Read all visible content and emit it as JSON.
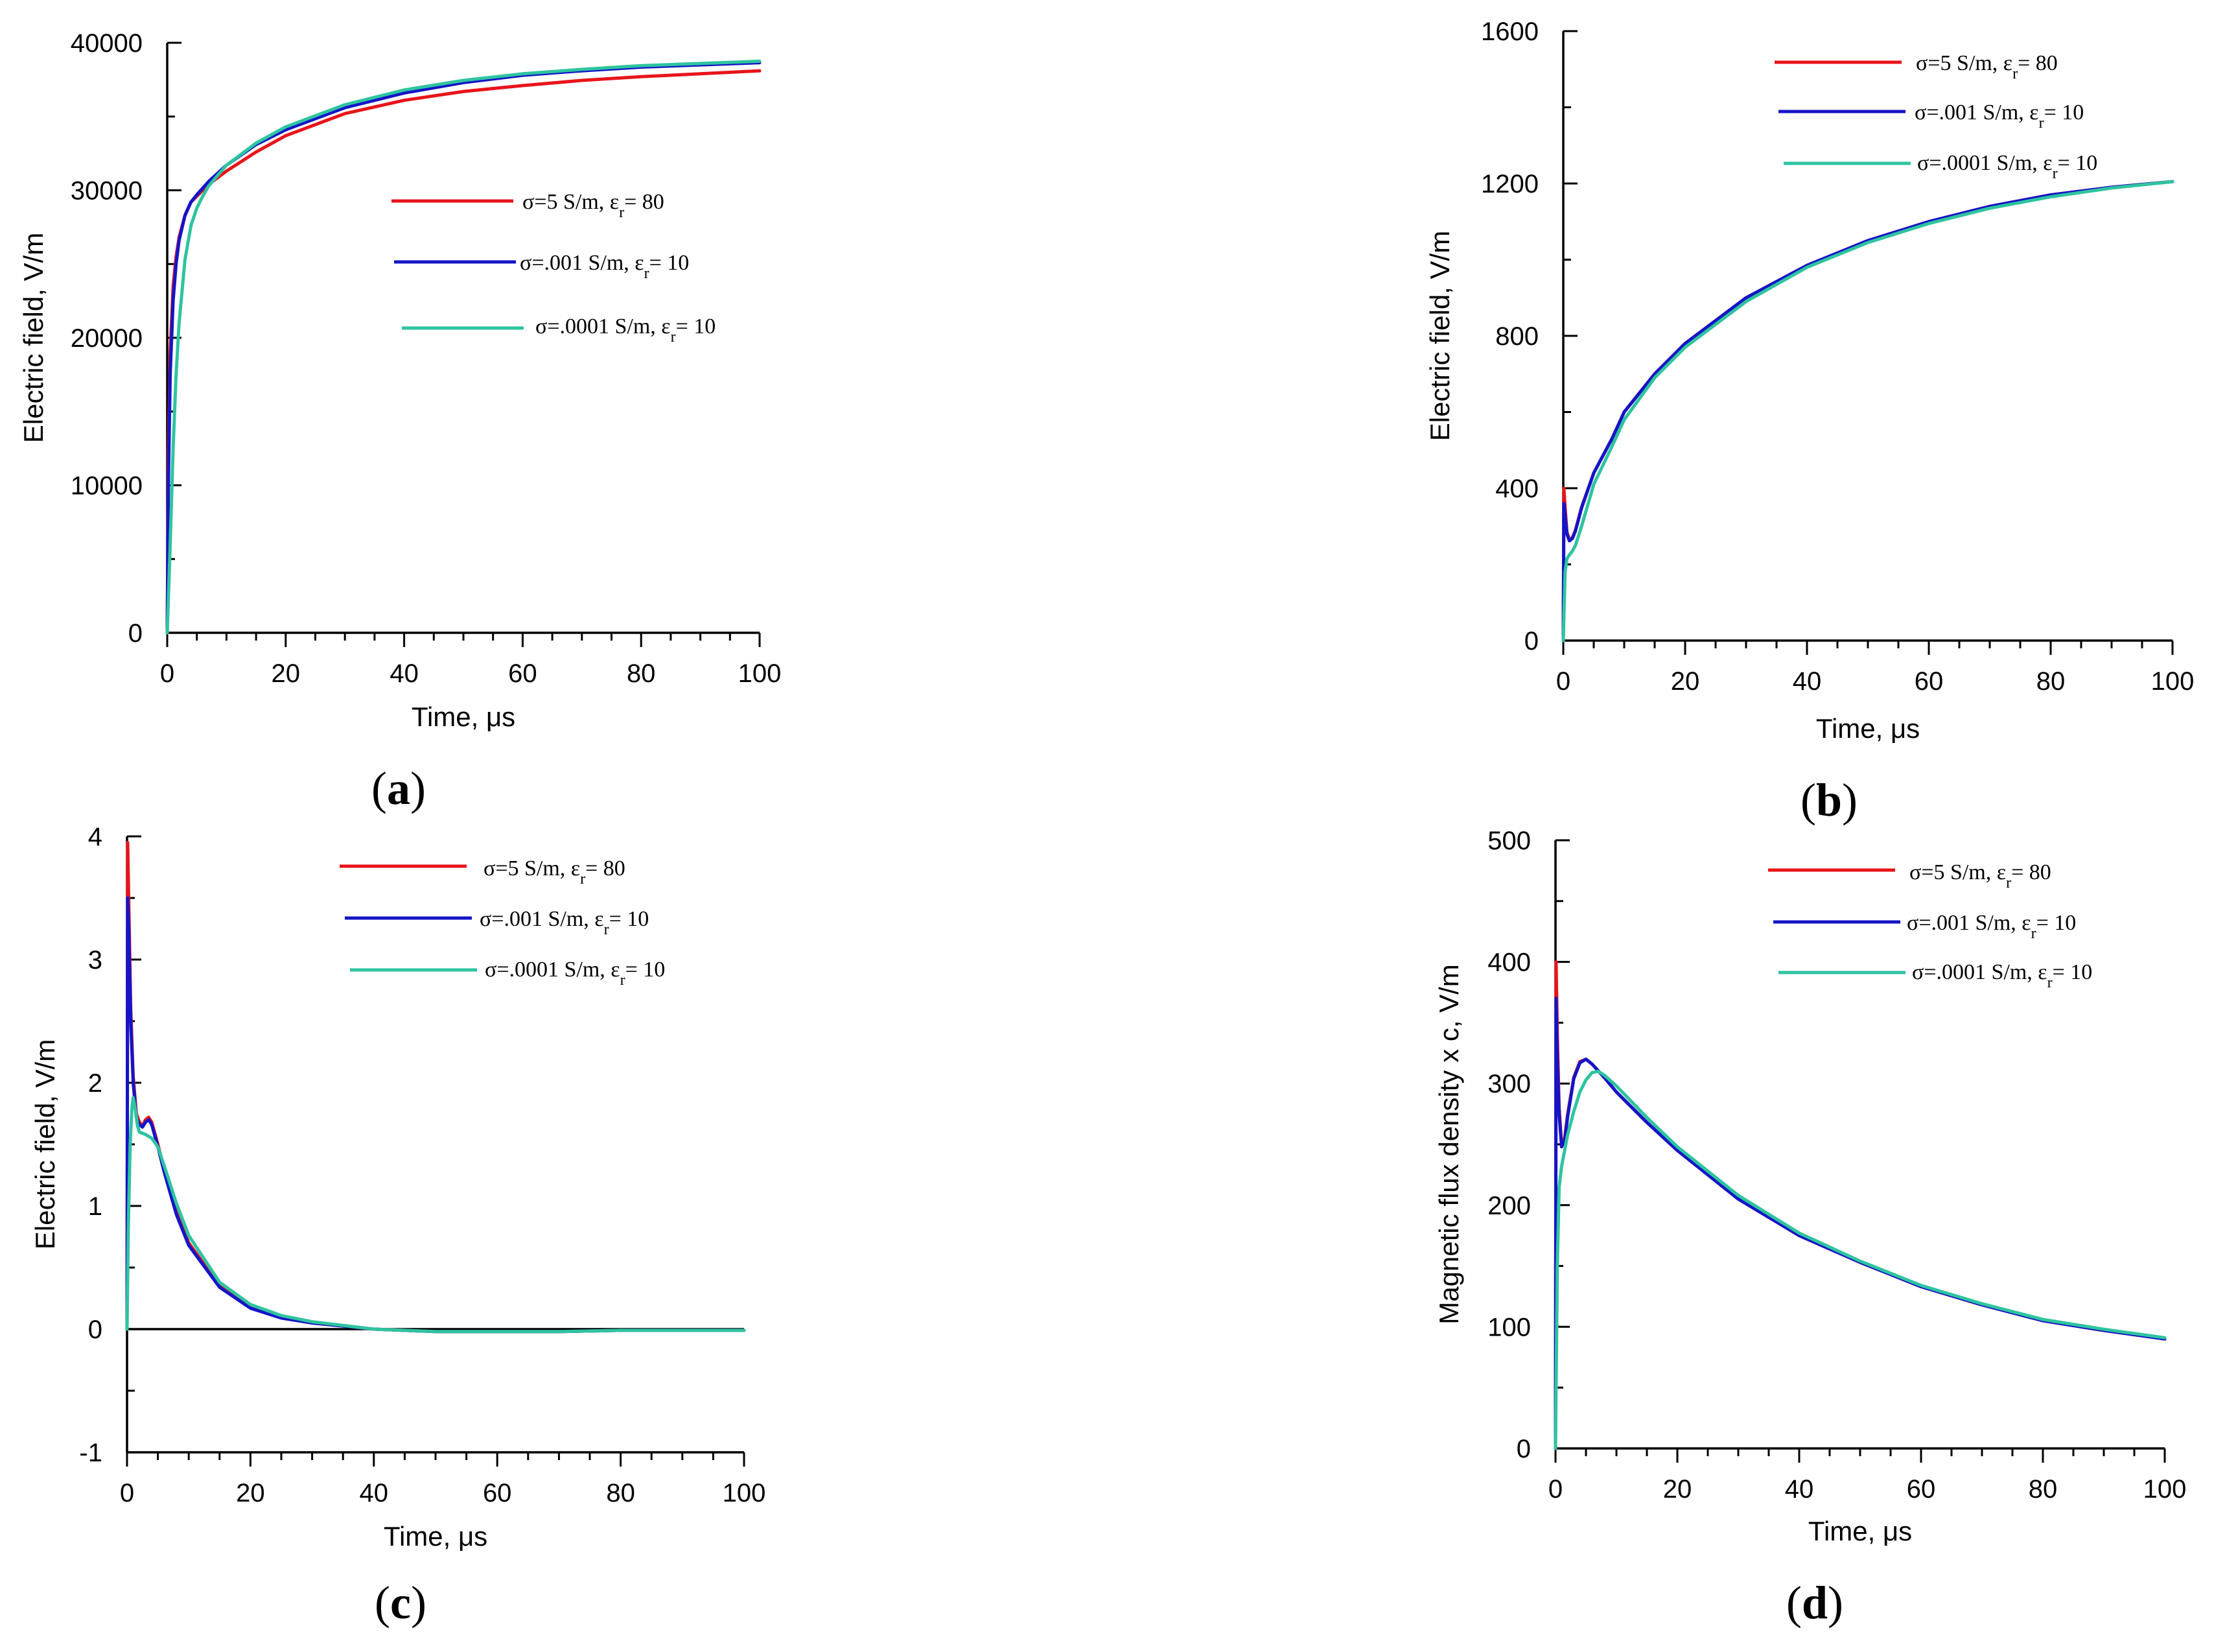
{
  "legend_template": {
    "sigma_prefix": "σ=",
    "sep": ", ",
    "eps": "ε",
    "eps_sub": "r",
    "eq": "= "
  },
  "chart_data": [
    {
      "id": "a",
      "type": "line",
      "panel_label": {
        "open": "(",
        "letter": "a",
        "close": ")"
      },
      "xlabel": "Time, μs",
      "ylabel": "Electric field, V/m",
      "xlim": [
        0,
        100
      ],
      "ylim": [
        0,
        40000
      ],
      "xticks": [
        0,
        20,
        40,
        60,
        80,
        100
      ],
      "yticks": [
        0,
        10000,
        20000,
        30000,
        40000
      ],
      "ytick_labels": [
        "0",
        "10000",
        "20000",
        "30000",
        "40000"
      ],
      "series": [
        {
          "name": "σ=5 S/m, εr= 80",
          "sigma": "5 S/m",
          "eps": "80",
          "color": "#e8141a",
          "x": [
            0,
            0.2,
            0.5,
            1,
            1.5,
            2,
            3,
            4,
            5,
            7,
            10,
            15,
            20,
            30,
            40,
            50,
            60,
            70,
            80,
            90,
            100
          ],
          "y": [
            0,
            12000,
            19000,
            23500,
            25500,
            26800,
            28300,
            29200,
            29600,
            30400,
            31300,
            32600,
            33700,
            35200,
            36100,
            36700,
            37100,
            37450,
            37700,
            37900,
            38100
          ]
        },
        {
          "name": "σ=.001 S/m, εr= 10",
          "sigma": ".001 S/m",
          "eps": "10",
          "color": "#1414c8",
          "x": [
            0,
            0.2,
            0.5,
            1,
            1.5,
            2,
            3,
            4,
            5,
            7,
            10,
            15,
            20,
            30,
            40,
            50,
            60,
            70,
            80,
            90,
            100
          ],
          "y": [
            0,
            10000,
            17500,
            22500,
            25000,
            26600,
            28300,
            29200,
            29700,
            30600,
            31700,
            33100,
            34100,
            35600,
            36600,
            37300,
            37800,
            38100,
            38350,
            38500,
            38650
          ]
        },
        {
          "name": "σ=.0001 S/m, εr= 10",
          "sigma": ".0001 S/m",
          "eps": "10",
          "color": "#2ec4a0",
          "x": [
            0,
            0.5,
            1,
            1.5,
            2,
            3,
            4,
            5,
            6,
            7,
            10,
            15,
            20,
            30,
            40,
            50,
            60,
            70,
            80,
            90,
            100
          ],
          "y": [
            0,
            6000,
            12500,
            17500,
            21000,
            25300,
            27600,
            28800,
            29600,
            30300,
            31700,
            33200,
            34300,
            35800,
            36800,
            37450,
            37900,
            38200,
            38450,
            38600,
            38750
          ]
        }
      ]
    },
    {
      "id": "b",
      "type": "line",
      "panel_label": {
        "open": "(",
        "letter": "b",
        "close": ")"
      },
      "xlabel": "Time, μs",
      "ylabel": "Electric field, V/m",
      "xlim": [
        0,
        100
      ],
      "ylim": [
        0,
        1600
      ],
      "xticks": [
        0,
        20,
        40,
        60,
        80,
        100
      ],
      "yticks": [
        0,
        400,
        800,
        1200,
        1600
      ],
      "ytick_labels": [
        "0",
        "400",
        "800",
        "1200",
        "1600"
      ],
      "series": [
        {
          "name": "σ=5 S/m, εr= 80",
          "sigma": "5 S/m",
          "eps": "80",
          "color": "#e8141a",
          "x": [
            0,
            0.1,
            0.3,
            0.6,
            1,
            1.5,
            2,
            3,
            5,
            8,
            10,
            15,
            20,
            30,
            40,
            50,
            60,
            70,
            80,
            90,
            100
          ],
          "y": [
            0,
            400,
            350,
            285,
            265,
            270,
            290,
            350,
            440,
            530,
            600,
            700,
            780,
            900,
            985,
            1050,
            1100,
            1140,
            1170,
            1190,
            1205
          ]
        },
        {
          "name": "σ=.001 S/m, εr= 10",
          "sigma": ".001 S/m",
          "eps": "10",
          "color": "#1414c8",
          "x": [
            0,
            0.1,
            0.3,
            0.6,
            1,
            1.5,
            2,
            3,
            5,
            8,
            10,
            15,
            20,
            30,
            40,
            50,
            60,
            70,
            80,
            90,
            100
          ],
          "y": [
            0,
            360,
            330,
            280,
            262,
            268,
            288,
            348,
            440,
            530,
            600,
            700,
            780,
            900,
            985,
            1050,
            1100,
            1140,
            1170,
            1190,
            1205
          ]
        },
        {
          "name": "σ=.0001 S/m, εr= 10",
          "sigma": ".0001 S/m",
          "eps": "10",
          "color": "#2ec4a0",
          "x": [
            0,
            0.3,
            0.6,
            1,
            1.5,
            2,
            3,
            5,
            8,
            10,
            15,
            20,
            30,
            40,
            50,
            60,
            70,
            80,
            90,
            100
          ],
          "y": [
            0,
            180,
            215,
            225,
            235,
            250,
            300,
            410,
            510,
            580,
            690,
            770,
            890,
            980,
            1045,
            1095,
            1135,
            1165,
            1188,
            1205
          ]
        }
      ]
    },
    {
      "id": "c",
      "type": "line",
      "panel_label": {
        "open": "(",
        "letter": "c",
        "close": ")"
      },
      "xlabel": "Time, μs",
      "ylabel": "Electric field, V/m",
      "xlim": [
        0,
        100
      ],
      "ylim": [
        -1,
        4
      ],
      "xticks": [
        0,
        20,
        40,
        60,
        80,
        100
      ],
      "yticks": [
        -1,
        0,
        1,
        2,
        3,
        4
      ],
      "ytick_labels": [
        "-1",
        "0",
        "1",
        "2",
        "3",
        "4"
      ],
      "series": [
        {
          "name": "σ=5 S/m, εr= 80",
          "sigma": "5 S/m",
          "eps": "80",
          "color": "#e8141a",
          "x": [
            0,
            0.1,
            0.3,
            0.6,
            1,
            1.5,
            2,
            2.5,
            3,
            3.5,
            4,
            5,
            6,
            8,
            10,
            15,
            20,
            25,
            30,
            40,
            50,
            60,
            70,
            80,
            90,
            100
          ],
          "y": [
            0,
            3.95,
            3.4,
            2.6,
            2.05,
            1.75,
            1.68,
            1.65,
            1.7,
            1.72,
            1.68,
            1.5,
            1.3,
            0.95,
            0.7,
            0.35,
            0.18,
            0.1,
            0.05,
            0.0,
            -0.02,
            -0.02,
            -0.02,
            -0.01,
            -0.01,
            -0.01
          ]
        },
        {
          "name": "σ=.001 S/m, εr= 10",
          "sigma": ".001 S/m",
          "eps": "10",
          "color": "#1414c8",
          "x": [
            0,
            0.1,
            0.3,
            0.6,
            1,
            1.5,
            2,
            2.5,
            3,
            3.5,
            4,
            5,
            6,
            8,
            10,
            15,
            20,
            25,
            30,
            40,
            50,
            60,
            70,
            80,
            90,
            100
          ],
          "y": [
            0,
            3.5,
            3.2,
            2.5,
            2.0,
            1.72,
            1.66,
            1.64,
            1.68,
            1.7,
            1.66,
            1.48,
            1.28,
            0.93,
            0.68,
            0.34,
            0.17,
            0.09,
            0.05,
            0.0,
            -0.02,
            -0.02,
            -0.02,
            -0.01,
            -0.01,
            -0.01
          ]
        },
        {
          "name": "σ=.0001 S/m, εr= 10",
          "sigma": ".0001 S/m",
          "eps": "10",
          "color": "#2ec4a0",
          "x": [
            0,
            0.2,
            0.5,
            0.8,
            1,
            1.3,
            1.7,
            2,
            3,
            4,
            5,
            6,
            8,
            10,
            15,
            20,
            25,
            30,
            40,
            50,
            60,
            70,
            80,
            90,
            100
          ],
          "y": [
            0,
            0.8,
            1.5,
            1.8,
            1.88,
            1.8,
            1.65,
            1.6,
            1.58,
            1.55,
            1.48,
            1.33,
            1.02,
            0.76,
            0.38,
            0.2,
            0.11,
            0.06,
            0.0,
            -0.02,
            -0.02,
            -0.02,
            -0.01,
            -0.01,
            -0.01
          ]
        }
      ]
    },
    {
      "id": "d",
      "type": "line",
      "panel_label": {
        "open": "(",
        "letter": "d",
        "close": ")"
      },
      "xlabel": "Time, μs",
      "ylabel": "Magnetic flux density x c, V/m",
      "xlim": [
        0,
        100
      ],
      "ylim": [
        0,
        500
      ],
      "xticks": [
        0,
        20,
        40,
        60,
        80,
        100
      ],
      "yticks": [
        0,
        100,
        200,
        300,
        400,
        500
      ],
      "ytick_labels": [
        "0",
        "100",
        "200",
        "300",
        "400",
        "500"
      ],
      "series": [
        {
          "name": "σ=5 S/m, εr= 80",
          "sigma": "5 S/m",
          "eps": "80",
          "color": "#e8141a",
          "x": [
            0,
            0.1,
            0.3,
            0.6,
            1,
            1.5,
            2,
            3,
            4,
            5,
            6,
            8,
            10,
            15,
            20,
            30,
            40,
            50,
            60,
            70,
            80,
            90,
            100
          ],
          "y": [
            0,
            400,
            340,
            280,
            250,
            255,
            275,
            305,
            318,
            320,
            316,
            305,
            293,
            268,
            245,
            205,
            175,
            153,
            133,
            118,
            105,
            97,
            90
          ]
        },
        {
          "name": "σ=.001 S/m, εr= 10",
          "sigma": ".001 S/m",
          "eps": "10",
          "color": "#1414c8",
          "x": [
            0,
            0.1,
            0.3,
            0.6,
            1,
            1.5,
            2,
            3,
            4,
            5,
            6,
            8,
            10,
            15,
            20,
            30,
            40,
            50,
            60,
            70,
            80,
            90,
            100
          ],
          "y": [
            0,
            370,
            320,
            275,
            248,
            253,
            273,
            304,
            317,
            320,
            316,
            305,
            293,
            268,
            245,
            205,
            175,
            153,
            133,
            118,
            105,
            97,
            90
          ]
        },
        {
          "name": "σ=.0001 S/m, εr= 10",
          "sigma": ".0001 S/m",
          "eps": "10",
          "color": "#2ec4a0",
          "x": [
            0,
            0.3,
            0.6,
            1,
            1.5,
            2,
            3,
            4,
            5,
            6,
            7,
            8,
            10,
            15,
            20,
            30,
            40,
            50,
            60,
            70,
            80,
            90,
            100
          ],
          "y": [
            0,
            150,
            215,
            232,
            245,
            258,
            277,
            293,
            303,
            309,
            310,
            307,
            298,
            272,
            248,
            208,
            177,
            154,
            134,
            119,
            106,
            98,
            91
          ]
        }
      ]
    }
  ]
}
